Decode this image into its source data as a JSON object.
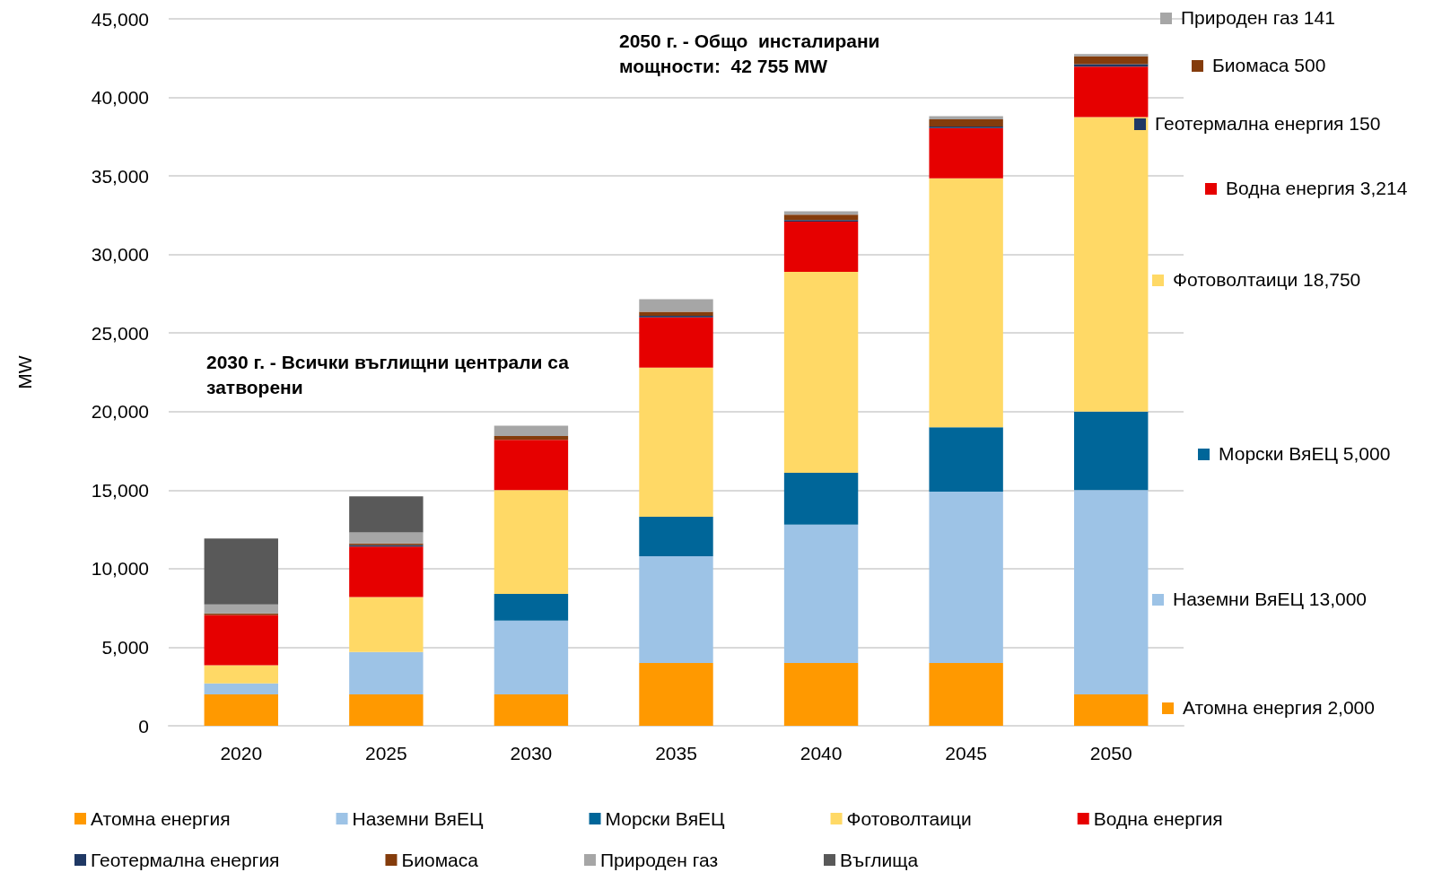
{
  "chart_data": {
    "type": "bar",
    "stacked": true,
    "ylabel": "MW",
    "categories": [
      "2020",
      "2025",
      "2030",
      "2035",
      "2040",
      "2045",
      "2050"
    ],
    "series": [
      {
        "name": "Атомна енергия",
        "color": "#ff9900",
        "values": [
          2000,
          2000,
          2000,
          4000,
          4000,
          4000,
          2000
        ]
      },
      {
        "name": "Наземни ВяЕЦ",
        "color": "#9dc3e6",
        "values": [
          700,
          2700,
          4700,
          6800,
          8800,
          10900,
          13000
        ]
      },
      {
        "name": "Морски ВяЕЦ",
        "color": "#006699",
        "values": [
          0,
          0,
          1700,
          2500,
          3300,
          4100,
          5000
        ]
      },
      {
        "name": "Фотоволтаици",
        "color": "#ffd966",
        "values": [
          1150,
          3500,
          6600,
          9500,
          12800,
          15850,
          18750
        ]
      },
      {
        "name": "Водна енергия",
        "color": "#e60000",
        "values": [
          3200,
          3200,
          3200,
          3200,
          3200,
          3200,
          3214
        ]
      },
      {
        "name": "Геотермална енергия",
        "color": "#1f3864",
        "values": [
          0,
          100,
          0,
          100,
          100,
          100,
          150
        ]
      },
      {
        "name": "Биомаса",
        "color": "#843c0c",
        "values": [
          100,
          100,
          250,
          250,
          330,
          450,
          500
        ]
      },
      {
        "name": "Природен газ",
        "color": "#a6a6a6",
        "values": [
          570,
          700,
          650,
          800,
          220,
          200,
          141
        ]
      },
      {
        "name": "Въглища",
        "color": "#595959",
        "values": [
          4200,
          2300,
          0,
          0,
          0,
          0,
          0
        ]
      }
    ],
    "ylim": [
      0,
      45000
    ],
    "yticks": [
      {
        "value": 0,
        "label": "0"
      },
      {
        "value": 5000,
        "label": "5,000"
      },
      {
        "value": 10000,
        "label": "10,000"
      },
      {
        "value": 15000,
        "label": "15,000"
      },
      {
        "value": 20000,
        "label": "20,000"
      },
      {
        "value": 25000,
        "label": "25,000"
      },
      {
        "value": 30000,
        "label": "30,000"
      },
      {
        "value": 35000,
        "label": "35,000"
      },
      {
        "value": 40000,
        "label": "40,000"
      },
      {
        "value": 45000,
        "label": "45,000"
      }
    ],
    "grid": "y",
    "legend": "bottom",
    "annotations": [
      "2050 г. - Общо  инсталирани мощности:  42 755 MW",
      "2030 г. - Всички въглищни централи са затворени",
      "Природен газ 141",
      "Биомаса 500",
      "Геотермална енергия 150",
      "Водна енергия 3,214",
      "Фотоволтаици 18,750",
      "Морски ВяЕЦ 5,000",
      "Наземни ВяЕЦ 13,000",
      "Атомна енергия 2,000"
    ]
  }
}
